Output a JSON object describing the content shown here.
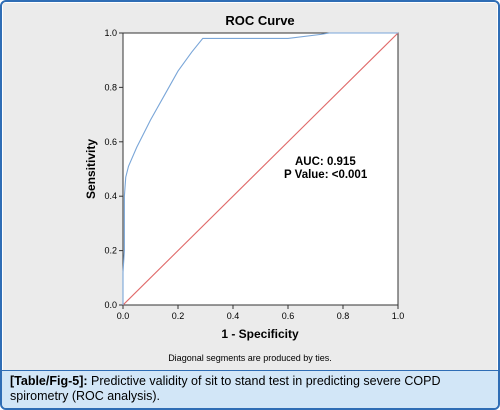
{
  "chart_data": {
    "type": "line",
    "title": "ROC Curve",
    "xlabel": "1 - Specificity",
    "ylabel": "Sensitivity",
    "xlim": [
      0,
      1
    ],
    "ylim": [
      0,
      1
    ],
    "x_ticks": [
      "0.0",
      "0.2",
      "0.4",
      "0.6",
      "0.8",
      "1.0"
    ],
    "y_ticks": [
      "0.0",
      "0.2",
      "0.4",
      "0.6",
      "0.8",
      "1.0"
    ],
    "grid": false,
    "series": [
      {
        "color": "#7aa6d8",
        "x": [
          0.0,
          0.0,
          0.005,
          0.005,
          0.01,
          0.02,
          0.05,
          0.1,
          0.15,
          0.2,
          0.25,
          0.29,
          0.3,
          0.45,
          0.6,
          0.72,
          0.75,
          1.0
        ],
        "y": [
          0.0,
          0.12,
          0.2,
          0.4,
          0.47,
          0.51,
          0.58,
          0.68,
          0.77,
          0.86,
          0.93,
          0.98,
          0.98,
          0.98,
          0.98,
          0.995,
          1.0,
          1.0
        ]
      },
      {
        "color": "#e06a6a",
        "x": [
          0,
          1
        ],
        "y": [
          0,
          1
        ]
      }
    ],
    "annotations": [
      "AUC: 0.915",
      "P Value: <0.001"
    ],
    "footnote": "Diagonal segments are produced by ties."
  },
  "caption": {
    "label": "[Table/Fig-5]:",
    "text": " Predictive validity of sit to stand test in predicting severe COPD spirometry (ROC analysis)."
  }
}
